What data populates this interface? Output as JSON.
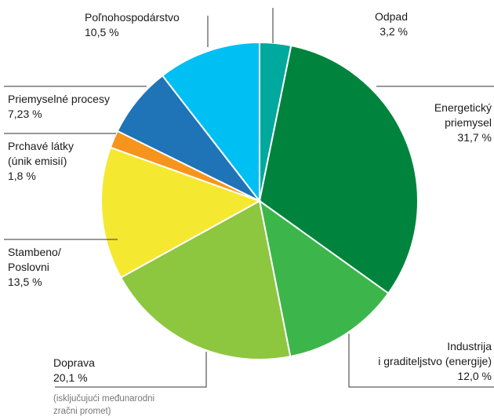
{
  "chart_data": {
    "type": "pie",
    "slices": [
      {
        "label_lines": [
          "Odpad"
        ],
        "value_text": "3,2 %",
        "value": 3.2,
        "color": "#00a99d"
      },
      {
        "label_lines": [
          "Energetický",
          "priemysel"
        ],
        "value_text": "31,7 %",
        "value": 31.7,
        "color": "#00843d"
      },
      {
        "label_lines": [
          "Industrija",
          "i graditeljstvo (energije)"
        ],
        "value_text": "12,0 %",
        "value": 12.0,
        "color": "#3cb64a"
      },
      {
        "label_lines": [
          "Doprava"
        ],
        "value_text": "20,1 %",
        "value": 20.1,
        "color": "#8dc63f",
        "note_lines": [
          "(isključujući međunarodni",
          "zračni promet)"
        ]
      },
      {
        "label_lines": [
          "Stambeno/",
          "Poslovni"
        ],
        "value_text": "13,5 %",
        "value": 13.5,
        "color": "#f5e830"
      },
      {
        "label_lines": [
          "Prchavé látky",
          "(únik emisií)"
        ],
        "value_text": "1,8 %",
        "value": 1.8,
        "color": "#f7941d"
      },
      {
        "label_lines": [
          "Priemyselné procesy"
        ],
        "value_text": "7,23 %",
        "value": 7.23,
        "color": "#1f73b7"
      },
      {
        "label_lines": [
          "Poľnohospodárstvo"
        ],
        "value_text": "10,5 %",
        "value": 10.5,
        "color": "#00bff3"
      }
    ]
  }
}
